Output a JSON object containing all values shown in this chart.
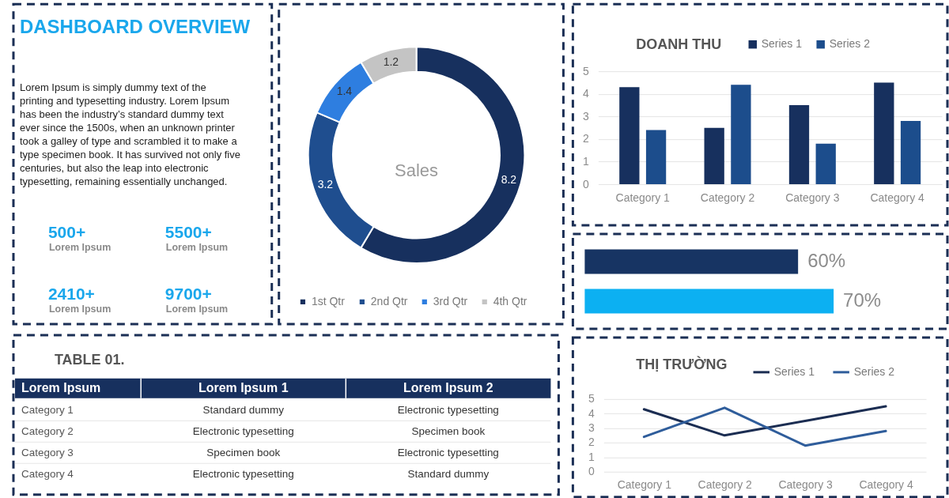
{
  "chart_data": [
    {
      "type": "other",
      "title": "DASHBOARD OVERVIEW",
      "annotations": [
        "Lorem Ipsum is simply dummy text of the\nprinting and typesetting industry. Lorem Ipsum\nhas been the industry’s standard dummy text\never since the 1500s, when an unknown printer\ntook a galley of type and scrambled it to make a\ntype specimen book. It has survived not only five\ncenturies, but also the leap into electronic\ntypesetting, remaining essentially unchanged.",
        "500+",
        "Lorem Ipsum",
        "5500+",
        "Lorem Ipsum",
        "2410+",
        "Lorem Ipsum",
        "9700+",
        "Lorem Ipsum"
      ]
    },
    {
      "type": "donut",
      "categories": [
        "1st Qtr",
        "2nd Qtr",
        "3rd Qtr",
        "4th Qtr"
      ],
      "values": [
        8.2,
        3.2,
        1.4,
        1.2
      ],
      "colors": [
        "#17305e",
        "#1f4e8f",
        "#2e7ee0",
        "#c4c4c4"
      ],
      "data_labels": true,
      "annotations": [
        "Sales"
      ],
      "legend": "bottom"
    },
    {
      "type": "bar",
      "title": "DOANH THU",
      "categories": [
        "Category 1",
        "Category 2",
        "Category 3",
        "Category 4"
      ],
      "series": [
        {
          "name": "Series 1",
          "color": "#17305e",
          "values": [
            4.3,
            2.5,
            3.5,
            4.5
          ]
        },
        {
          "name": "Series 2",
          "color": "#1c4d8c",
          "values": [
            2.4,
            4.4,
            1.8,
            2.8
          ]
        }
      ],
      "ylim": [
        0,
        5
      ],
      "yticks": [
        0,
        1,
        2,
        3,
        4,
        5
      ],
      "grid": "y",
      "legend": "top right"
    },
    {
      "type": "bar",
      "orientation": "horizontal",
      "categories": [
        null,
        null
      ],
      "values": [
        60,
        70
      ],
      "colors": [
        "#173463",
        "#0cb0f2"
      ],
      "value_labels": [
        "60%",
        "70%"
      ],
      "tick_labels": false
    },
    {
      "type": "other",
      "title": "TABLE 01.",
      "categories": [
        "Lorem Ipsum",
        "Lorem Ipsum 1",
        "Lorem Ipsum 2"
      ],
      "y_categories": [
        "Category 1",
        "Category 2",
        "Category 3",
        "Category 4"
      ],
      "cell_labels": [
        [
          "Standard dummy",
          "Electronic typesetting"
        ],
        [
          "Electronic typesetting",
          "Specimen book"
        ],
        [
          "Specimen book",
          "Electronic typesetting"
        ],
        [
          "Electronic typesetting",
          "Standard dummy"
        ]
      ]
    },
    {
      "type": "line",
      "title": "THỊ TRƯỜNG",
      "categories": [
        "Category 1",
        "Category 2",
        "Category 3",
        "Category 4"
      ],
      "series": [
        {
          "name": "Series 1",
          "color": "#1b2d52",
          "values": [
            4.3,
            2.5,
            3.5,
            4.5
          ]
        },
        {
          "name": "Series 2",
          "color": "#2f5d9b",
          "values": [
            2.4,
            4.4,
            1.8,
            2.8
          ]
        }
      ],
      "ylim": [
        0,
        5
      ],
      "yticks": [
        0,
        1,
        2,
        3,
        4,
        5
      ],
      "grid": "y",
      "legend": "top right"
    }
  ]
}
